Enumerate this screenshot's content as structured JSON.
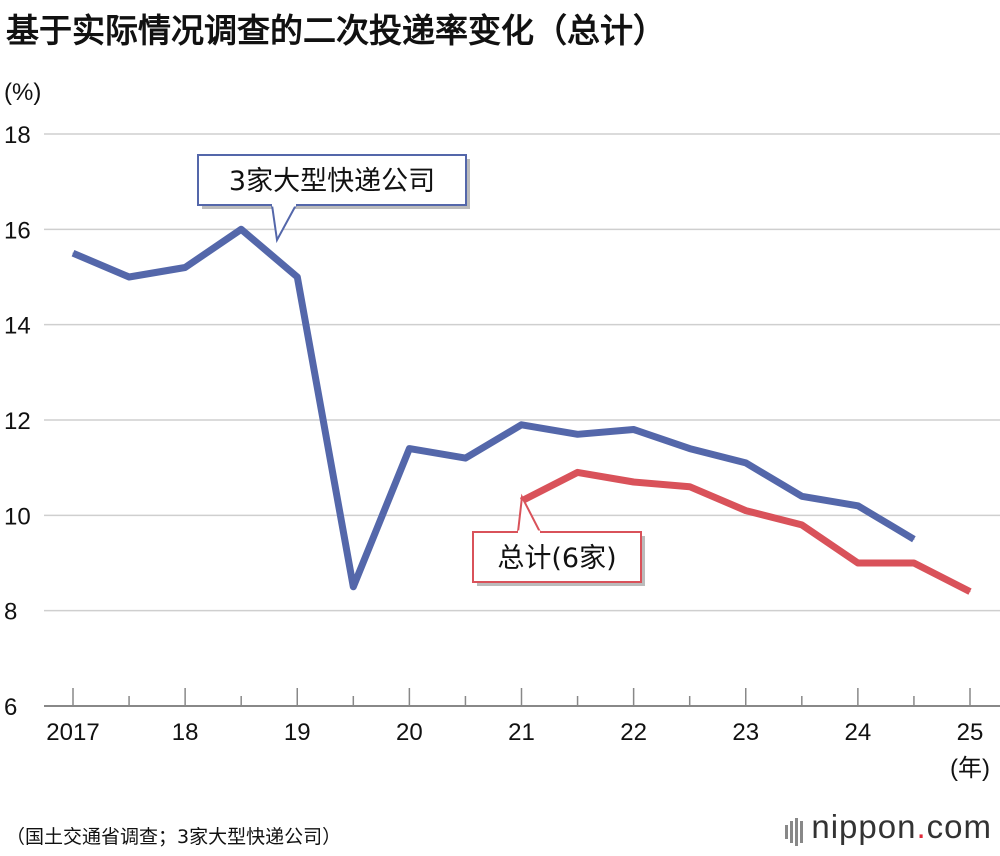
{
  "title": "基于实际情况调查的二次投递率变化（总计）",
  "source": "（国土交通省调查；3家大型快递公司）",
  "brand": {
    "name": "nippon",
    "dot": ".",
    "tld": "com"
  },
  "colors": {
    "series_big3": "#5467aa",
    "series_total": "#d9525a",
    "grid": "#cfcfcf",
    "axis": "#888888"
  },
  "chart_data": {
    "type": "line",
    "ylabel": "(%)",
    "xlabel": "(年)",
    "ylim": [
      6,
      18
    ],
    "yticks": [
      6,
      8,
      10,
      12,
      14,
      16,
      18
    ],
    "x_tick_labels": [
      {
        "x": 2017.25,
        "label": "2017"
      },
      {
        "x": 2018.25,
        "label": "18"
      },
      {
        "x": 2019.25,
        "label": "19"
      },
      {
        "x": 2020.25,
        "label": "20"
      },
      {
        "x": 2021.25,
        "label": "21"
      },
      {
        "x": 2022.25,
        "label": "22"
      },
      {
        "x": 2023.25,
        "label": "23"
      },
      {
        "x": 2024.25,
        "label": "24"
      },
      {
        "x": 2025.25,
        "label": "25"
      }
    ],
    "x_minor_ticks": [
      2017.75,
      2018.75,
      2019.75,
      2020.75,
      2021.75,
      2022.75,
      2023.75,
      2024.75
    ],
    "xlim": [
      2017.25,
      2025.25
    ],
    "grid": true,
    "series": [
      {
        "name": "3家大型快递公司",
        "x": [
          2017.25,
          2017.75,
          2018.25,
          2018.75,
          2019.25,
          2019.75,
          2020.25,
          2020.75,
          2021.25,
          2021.75,
          2022.25,
          2022.75,
          2023.25,
          2023.75,
          2024.25,
          2024.75,
          2025.25
        ],
        "values": [
          15.5,
          15.0,
          15.2,
          16.0,
          15.0,
          8.5,
          11.4,
          11.2,
          11.9,
          11.7,
          11.8,
          11.4,
          11.1,
          10.4,
          10.2,
          9.5,
          null
        ]
      },
      {
        "name": "总计(6家)",
        "x": [
          2021.25,
          2021.75,
          2022.25,
          2022.75,
          2023.25,
          2023.75,
          2024.25,
          2024.75,
          2025.25
        ],
        "values": [
          10.3,
          10.9,
          10.7,
          10.6,
          10.1,
          9.8,
          9.0,
          9.0,
          8.4
        ]
      }
    ]
  }
}
